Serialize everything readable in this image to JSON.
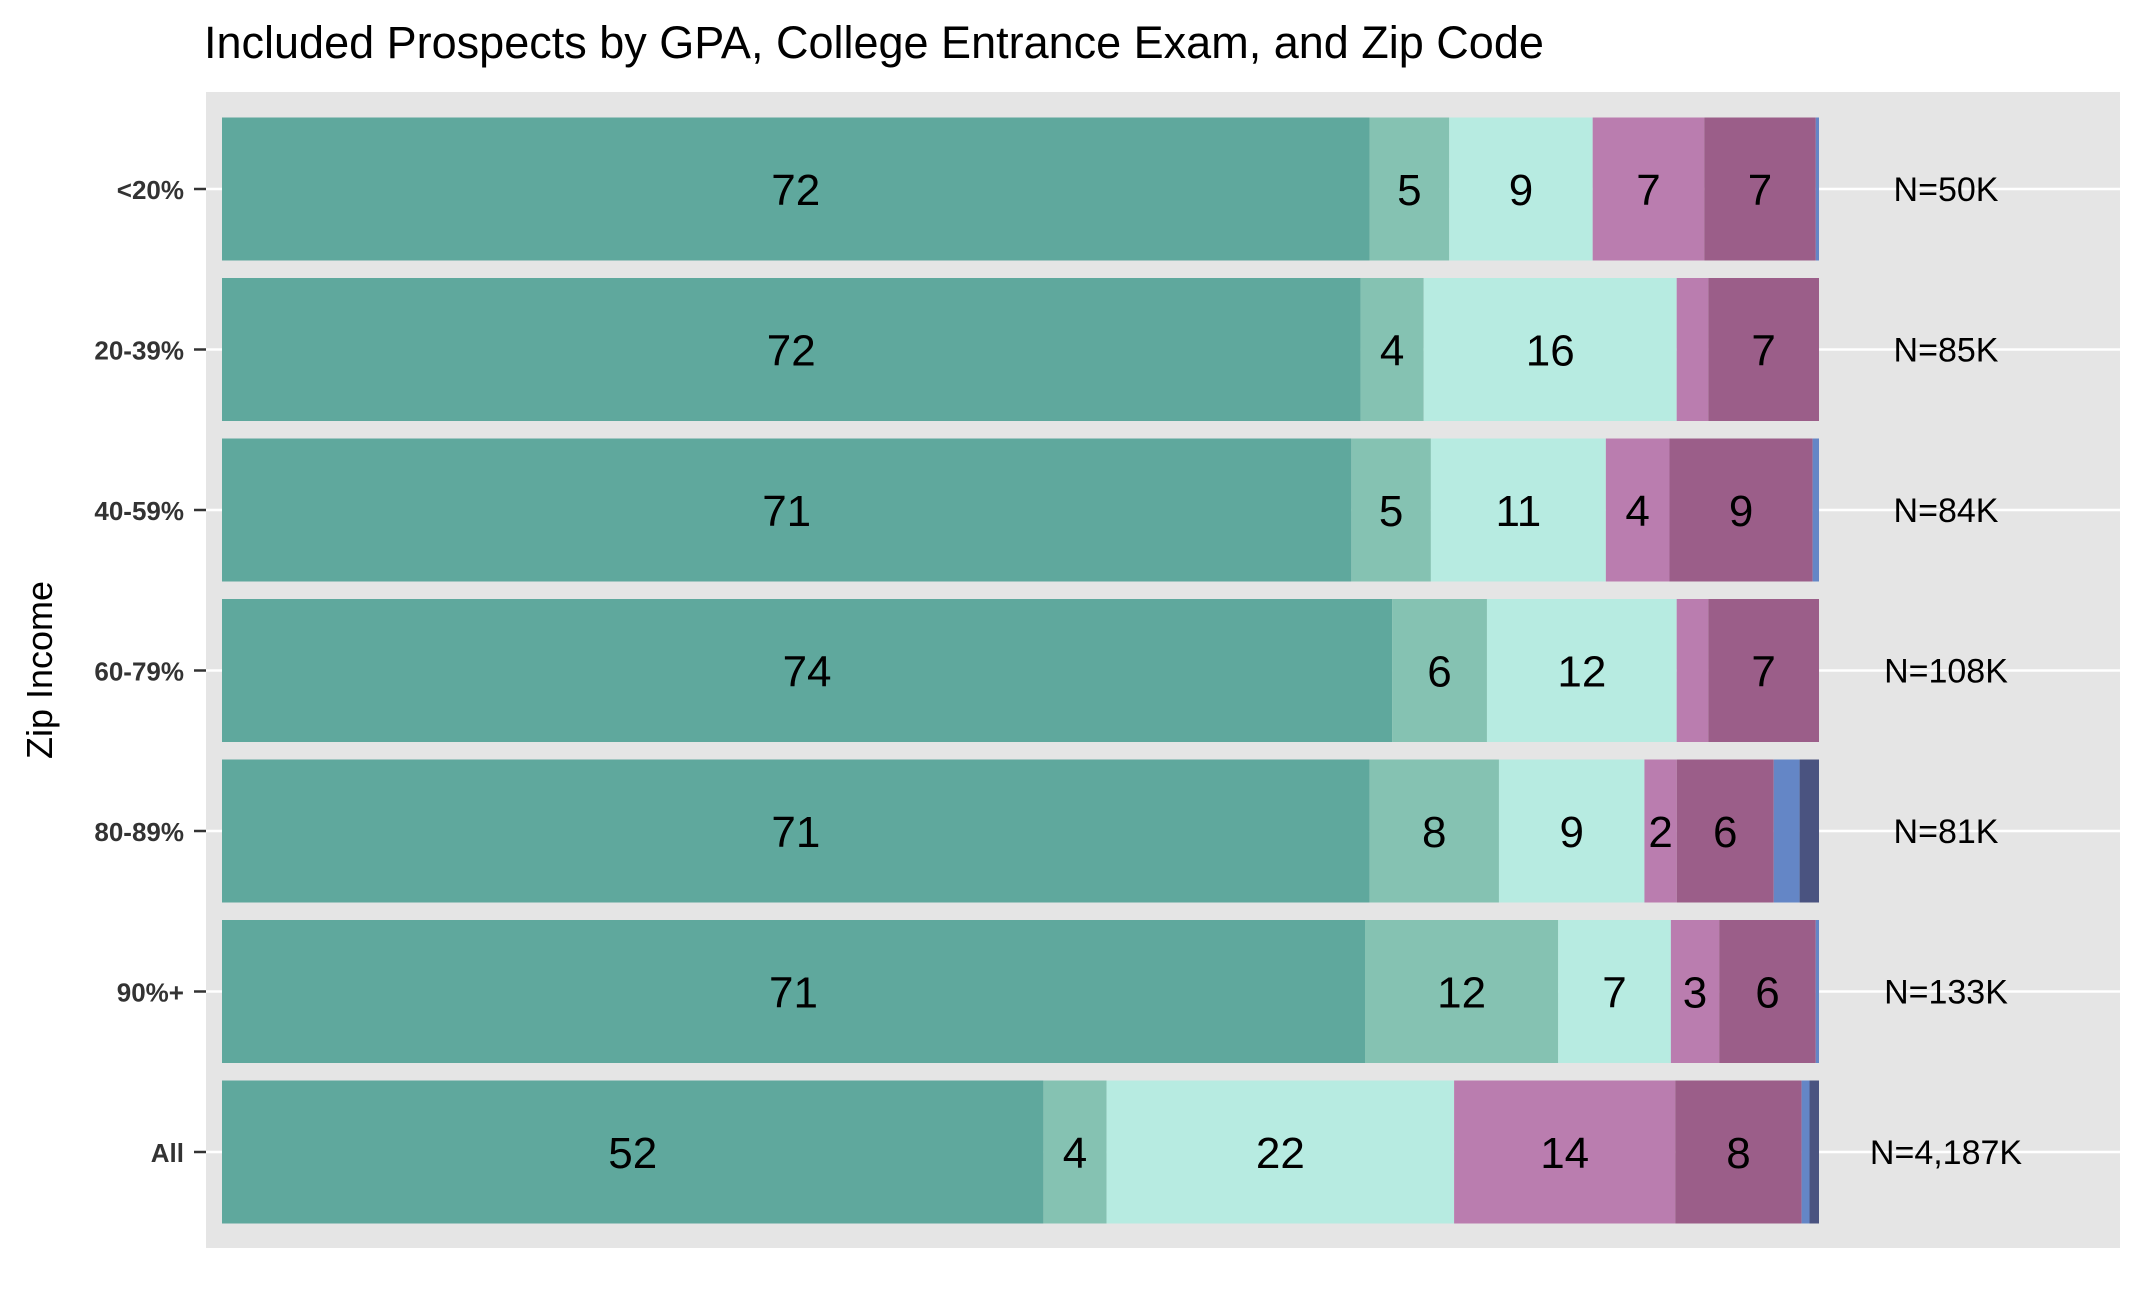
{
  "chart_data": {
    "type": "bar",
    "orientation": "horizontal",
    "stacked": true,
    "normalized_to_100": true,
    "title": "Included Prospects by GPA, College Entrance Exam, and Zip Code",
    "xlabel": "",
    "ylabel": "Zip Income",
    "categories": [
      "<20%",
      "20-39%",
      "40-59%",
      "60-79%",
      "80-89%",
      "90%+",
      "All"
    ],
    "n_labels": [
      "N=50K",
      "N=85K",
      "N=84K",
      "N=108K",
      "N=81K",
      "N=133K",
      "N=4,187K"
    ],
    "grid": true,
    "legend": "none",
    "series": [
      {
        "color": "#5fa89d",
        "values": [
          72,
          72,
          71,
          74,
          71,
          71,
          52
        ],
        "labels": [
          "72",
          "72",
          "71",
          "74",
          "71",
          "71",
          "52"
        ]
      },
      {
        "color": "#85c2b2",
        "values": [
          5,
          4,
          5,
          6,
          8,
          12,
          4
        ],
        "labels": [
          "5",
          "4",
          "5",
          "6",
          "8",
          "12",
          "4"
        ]
      },
      {
        "color": "#b7ebe1",
        "values": [
          9,
          16,
          11,
          12,
          9,
          7,
          22
        ],
        "labels": [
          "9",
          "16",
          "11",
          "12",
          "9",
          "7",
          "22"
        ]
      },
      {
        "color": "#ba7daf",
        "values": [
          7,
          2,
          4,
          2,
          2,
          3,
          14
        ],
        "labels": [
          "7",
          "",
          "4",
          "",
          "2",
          "3",
          "14"
        ]
      },
      {
        "color": "#9b5e89",
        "values": [
          7,
          7,
          9,
          7,
          6,
          6,
          8
        ],
        "labels": [
          "7",
          "7",
          "9",
          "7",
          "6",
          "6",
          "8"
        ]
      },
      {
        "color": "#6486c6",
        "values": [
          0.2,
          0,
          0.4,
          0,
          1.6,
          0.2,
          0.5
        ],
        "labels": [
          "",
          "",
          "",
          "",
          "",
          "",
          ""
        ]
      },
      {
        "color": "#4a5380",
        "values": [
          0,
          0,
          0,
          0,
          1.2,
          0,
          0.6
        ],
        "labels": [
          "",
          "",
          "",
          "",
          "",
          "",
          ""
        ]
      }
    ]
  }
}
